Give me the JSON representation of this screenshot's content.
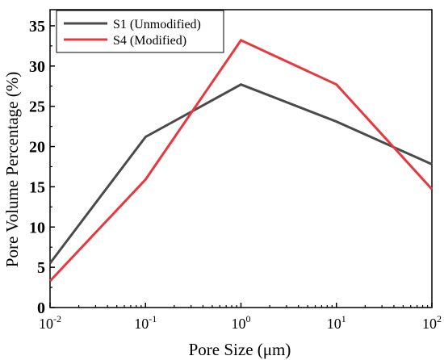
{
  "chart_data": {
    "type": "line",
    "xlabel": "Pore Size (μm)",
    "ylabel": "Pore Volume Percentage (%)",
    "x_scale": "log",
    "x": [
      0.01,
      0.1,
      1,
      10,
      100
    ],
    "xlim": [
      0.01,
      100
    ],
    "ylim": [
      0,
      37
    ],
    "x_ticks": [
      {
        "value": 0.01,
        "base": "10",
        "exp": "-2"
      },
      {
        "value": 0.1,
        "base": "10",
        "exp": "-1"
      },
      {
        "value": 1,
        "base": "10",
        "exp": "0"
      },
      {
        "value": 10,
        "base": "10",
        "exp": "1"
      },
      {
        "value": 100,
        "base": "10",
        "exp": "2"
      }
    ],
    "y_ticks": [
      0,
      5,
      10,
      15,
      20,
      25,
      30,
      35
    ],
    "grid": false,
    "legend_position": "top-left",
    "series": [
      {
        "name": "S1 (Unmodified)",
        "color": "#4a4a4a",
        "values": [
          5.5,
          21.2,
          27.7,
          23.1,
          17.8
        ]
      },
      {
        "name": "S4 (Modified)",
        "color": "#e8383d",
        "values": [
          3.3,
          15.9,
          33.2,
          27.7,
          14.7
        ]
      }
    ]
  }
}
